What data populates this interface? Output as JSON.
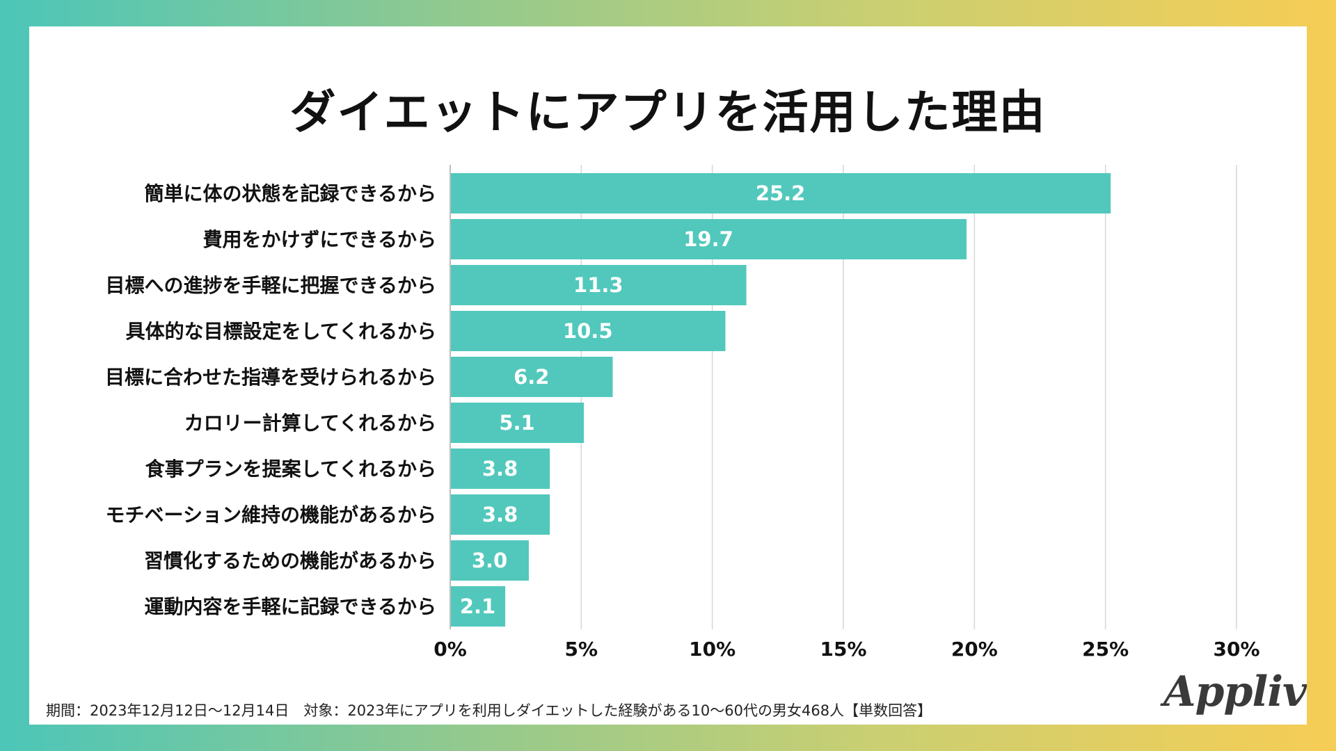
{
  "page": {
    "title": "ダイエットにアプリを活用した理由",
    "footnote": "期間：2023年12月12日〜12月14日　対象：2023年にアプリを利用しダイエットした経験がある10〜60代の男女468人【単数回答】",
    "logo": "Appliv"
  },
  "colors": {
    "bar": "#52c8bc",
    "grid": "#d6d6d6",
    "axis": "#bdbdbd",
    "label": "#111111",
    "value_label": "#ffffff"
  },
  "chart_data": {
    "type": "bar",
    "orientation": "horizontal",
    "title": "ダイエットにアプリを活用した理由",
    "xlabel": "",
    "ylabel": "",
    "xlim": [
      0,
      30
    ],
    "grid": true,
    "x_ticks": [
      {
        "value": 0,
        "label": "0%"
      },
      {
        "value": 5,
        "label": "5%"
      },
      {
        "value": 10,
        "label": "10%"
      },
      {
        "value": 15,
        "label": "15%"
      },
      {
        "value": 20,
        "label": "20%"
      },
      {
        "value": 25,
        "label": "25%"
      },
      {
        "value": 30,
        "label": "30%"
      }
    ],
    "categories": [
      "簡単に体の状態を記録できるから",
      "費用をかけずにできるから",
      "目標への進捗を手軽に把握できるから",
      "具体的な目標設定をしてくれるから",
      "目標に合わせた指導を受けられるから",
      "カロリー計算してくれるから",
      "食事プランを提案してくれるから",
      "モチベーション維持の機能があるから",
      "習慣化するための機能があるから",
      "運動内容を手軽に記録できるから"
    ],
    "values": [
      25.2,
      19.7,
      11.3,
      10.5,
      6.2,
      5.1,
      3.8,
      3.8,
      3.0,
      2.1
    ],
    "value_labels": [
      "25.2",
      "19.7",
      "11.3",
      "10.5",
      "6.2",
      "5.1",
      "3.8",
      "3.8",
      "3.0",
      "2.1"
    ]
  }
}
